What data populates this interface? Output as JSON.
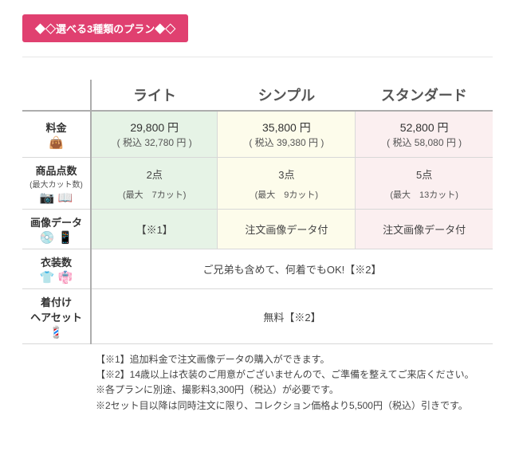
{
  "banner": {
    "text": "◆◇選べる3種類のプラン◆◇"
  },
  "columns": {
    "light": "ライト",
    "simple": "シンプル",
    "standard": "スタンダード"
  },
  "rows": {
    "fee": {
      "label": "料金",
      "icons": "👜"
    },
    "items": {
      "label": "商品点数",
      "sub": "(最大カット数)",
      "icons": "📷 📖"
    },
    "data": {
      "label": "画像データ",
      "icons": "💿 📱"
    },
    "costume": {
      "label": "衣装数",
      "icons": "👕 👘"
    },
    "hair": {
      "label": "着付け\nヘアセット",
      "icons": "💈"
    }
  },
  "fee": {
    "light": {
      "main": "29,800 円",
      "sub": "( 税込 32,780 円 )"
    },
    "simple": {
      "main": "35,800 円",
      "sub": "( 税込 39,380 円 )"
    },
    "standard": {
      "main": "52,800 円",
      "sub": "( 税込 58,080 円 )"
    }
  },
  "items": {
    "light": {
      "main": "2点",
      "sub": "(最大　7カット)"
    },
    "simple": {
      "main": "3点",
      "sub": "(最大　9カット)"
    },
    "standard": {
      "main": "5点",
      "sub": "(最大　13カット)"
    }
  },
  "data": {
    "light": "【※1】",
    "simple": "注文画像データ付",
    "standard": "注文画像データ付"
  },
  "costume": "ご兄弟も含めて、何着でもOK!【※2】",
  "hair": "無料【※2】",
  "notes": {
    "n1": "【※1】追加料金で注文画像データの購入ができます。",
    "n2": "【※2】14歳以上は衣装のご用意がございませんので、ご準備を整えてご来店ください。",
    "n3": "※各プランに別途、撮影料3,300円（税込）が必要です。",
    "n4": "※2セット目以降は同時注文に限り、コレクション価格より5,500円（税込）引きです。"
  }
}
